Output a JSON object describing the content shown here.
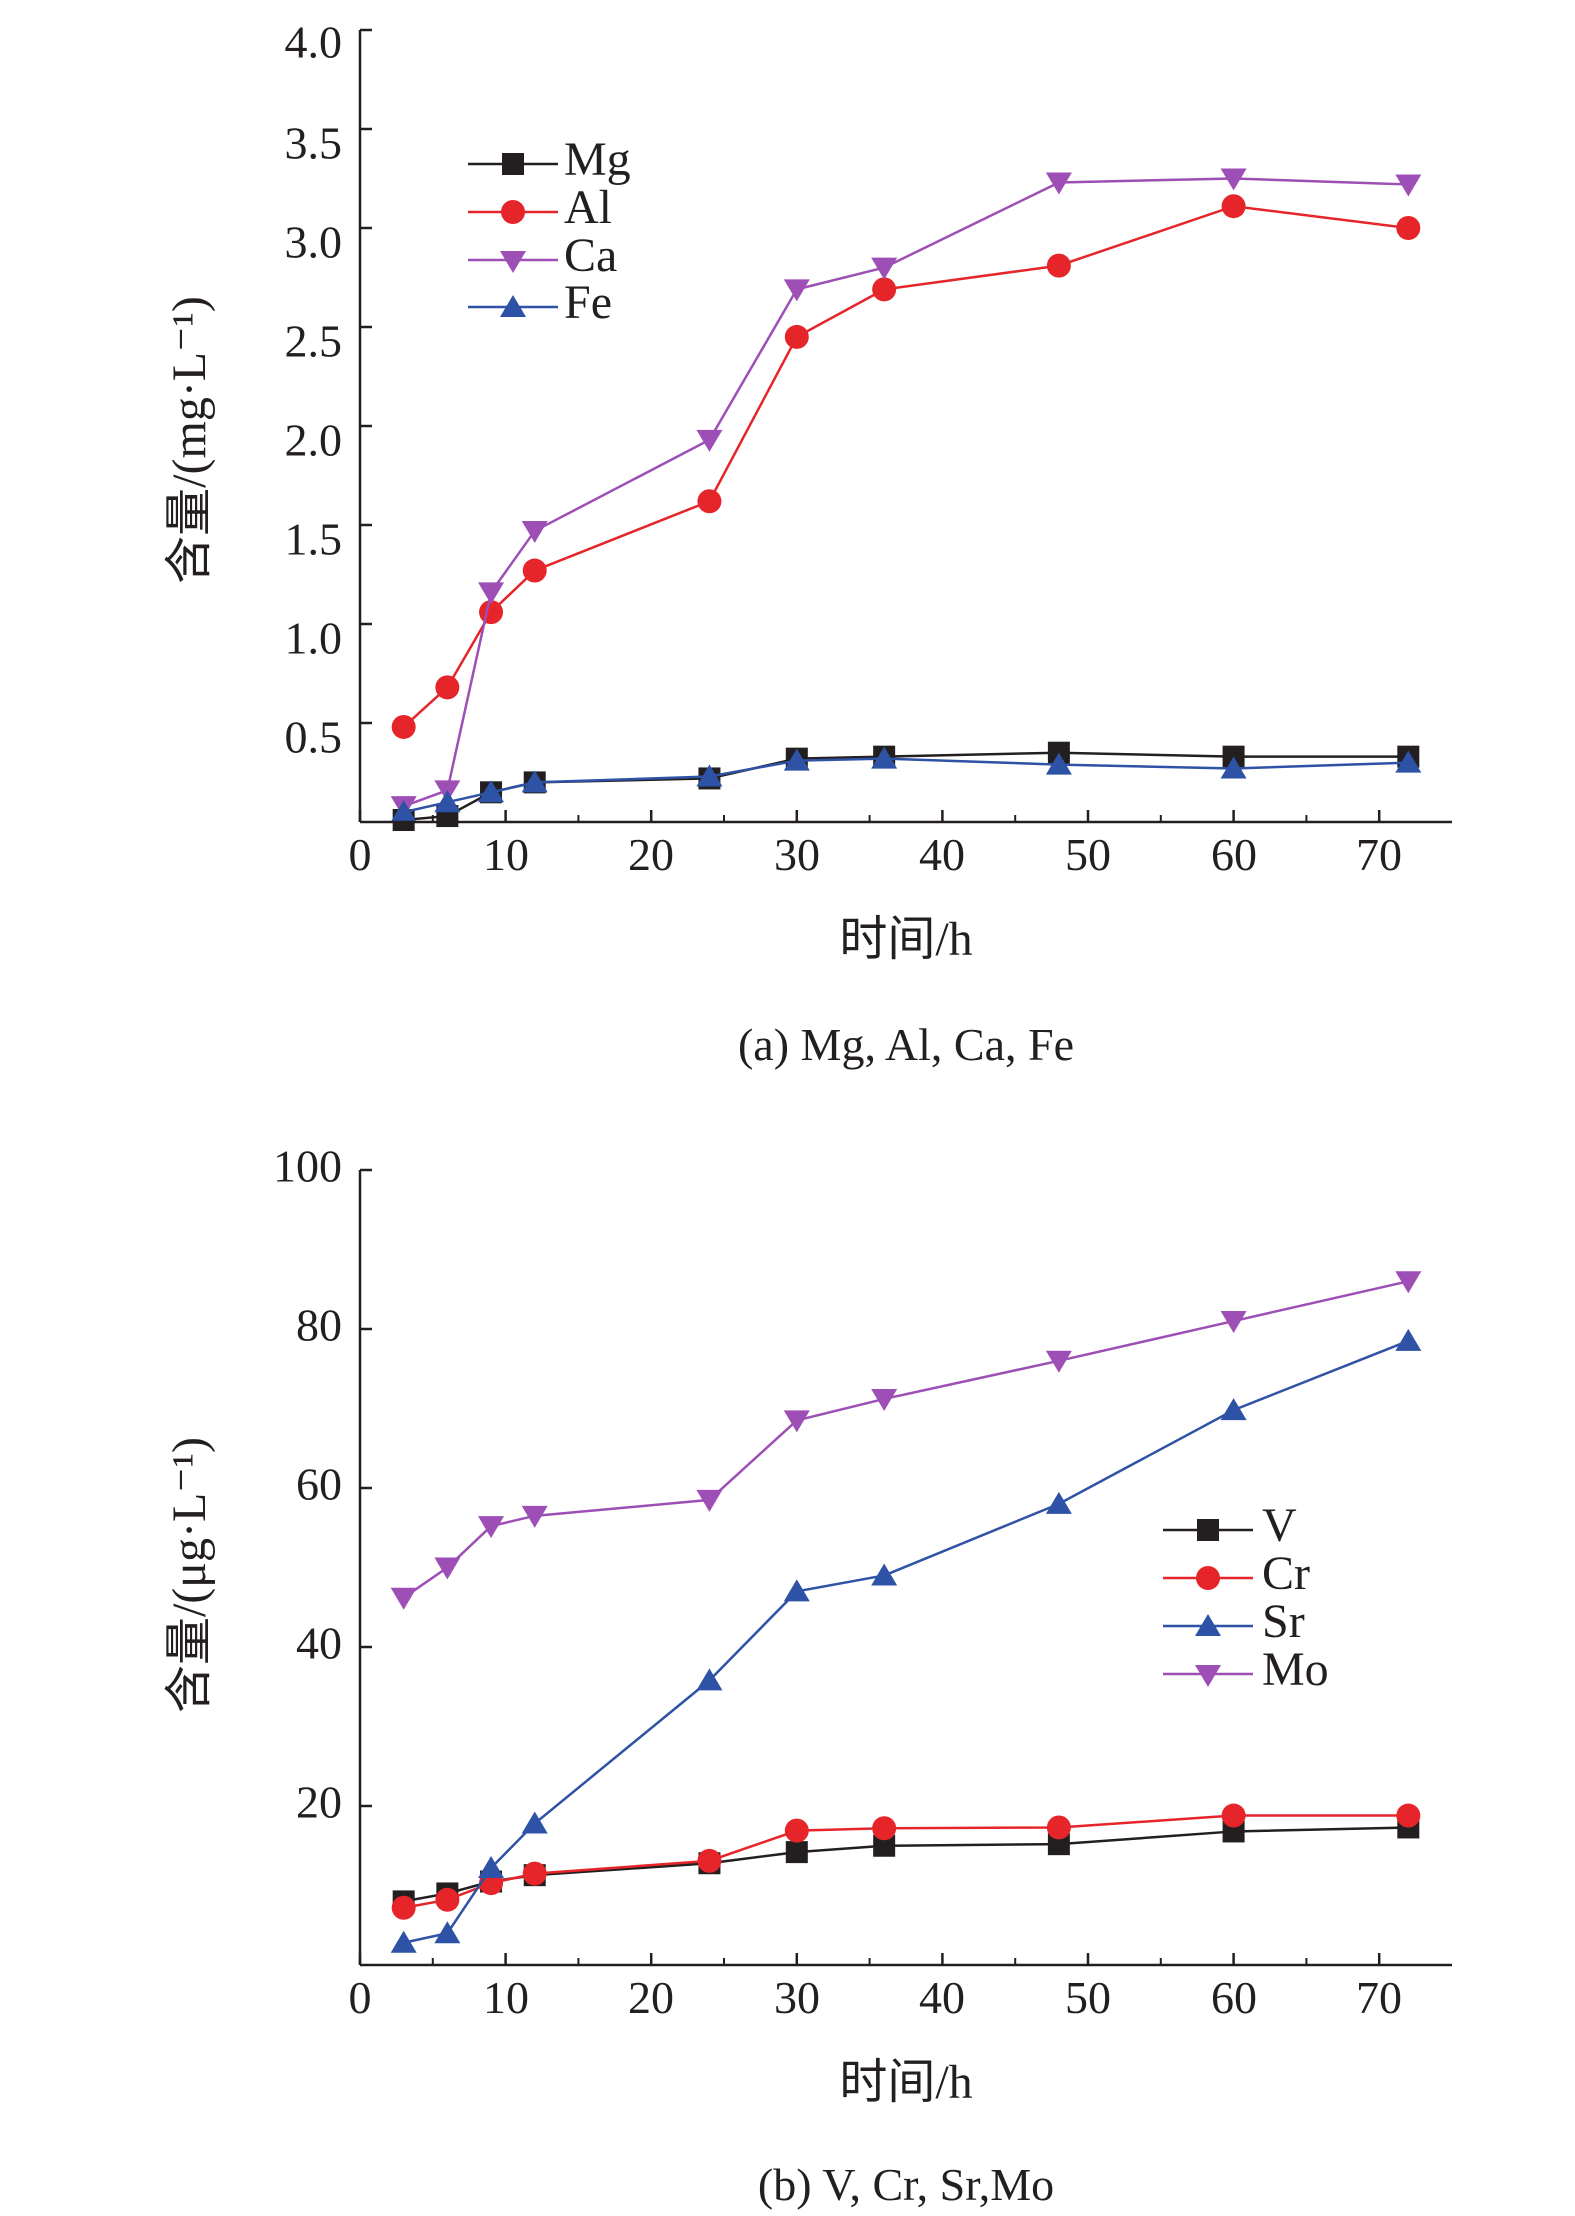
{
  "chart_data": [
    {
      "type": "line",
      "title": "",
      "caption": "(a) Mg, Al, Ca, Fe",
      "xlabel": "时间/h",
      "ylabel": "含量/(mg·L⁻¹)",
      "xlim": [
        0,
        75
      ],
      "ylim": [
        0,
        4
      ],
      "xticks": [
        0,
        10,
        20,
        30,
        40,
        50,
        60,
        70
      ],
      "xtick_labels": [
        "0",
        "10",
        "20",
        "30",
        "40",
        "50",
        "60",
        "70"
      ],
      "yticks": [
        0.5,
        1.0,
        1.5,
        2.0,
        2.5,
        3.0,
        3.5,
        4.0
      ],
      "ytick_labels": [
        "0.5",
        "1.0",
        "1.5",
        "2.0",
        "2.5",
        "3.0",
        "3.5",
        "4.0"
      ],
      "grid": false,
      "legend_position": "top-left",
      "x": [
        3,
        6,
        9,
        12,
        24,
        30,
        36,
        48,
        60,
        72
      ],
      "series": [
        {
          "name": "Mg",
          "color": "#231f20",
          "marker": "square",
          "values": [
            0.01,
            0.03,
            0.15,
            0.2,
            0.22,
            0.32,
            0.33,
            0.35,
            0.33,
            0.33
          ]
        },
        {
          "name": "Al",
          "color": "#e5252a",
          "marker": "circle",
          "values": [
            0.48,
            0.68,
            1.06,
            1.27,
            1.62,
            2.45,
            2.69,
            2.81,
            3.11,
            3.0
          ]
        },
        {
          "name": "Ca",
          "color": "#9d4fb6",
          "marker": "triangle-down",
          "values": [
            0.08,
            0.16,
            1.16,
            1.47,
            1.93,
            2.69,
            2.8,
            3.23,
            3.25,
            3.22
          ]
        },
        {
          "name": "Fe",
          "color": "#2e52a5",
          "marker": "triangle-up",
          "values": [
            0.05,
            0.1,
            0.15,
            0.2,
            0.23,
            0.31,
            0.32,
            0.29,
            0.27,
            0.3
          ]
        }
      ]
    },
    {
      "type": "line",
      "title": "",
      "caption": "(b) V, Cr, Sr,Mo",
      "xlabel": "时间/h",
      "ylabel": "含量/(μg·L⁻¹)",
      "xlim": [
        0,
        75
      ],
      "ylim": [
        0,
        100
      ],
      "xticks": [
        0,
        10,
        20,
        30,
        40,
        50,
        60,
        70
      ],
      "xtick_labels": [
        "0",
        "10",
        "20",
        "30",
        "40",
        "50",
        "60",
        "70"
      ],
      "yticks": [
        20,
        40,
        60,
        80,
        100
      ],
      "ytick_labels": [
        "20",
        "40",
        "60",
        "80",
        "100"
      ],
      "grid": false,
      "legend_position": "right",
      "x": [
        3,
        6,
        9,
        12,
        24,
        30,
        36,
        48,
        60,
        72
      ],
      "series": [
        {
          "name": "V",
          "color": "#231f20",
          "marker": "square",
          "values": [
            8.0,
            9.0,
            10.5,
            11.3,
            12.8,
            14.2,
            15.0,
            15.2,
            16.8,
            17.3
          ]
        },
        {
          "name": "Cr",
          "color": "#e5252a",
          "marker": "circle",
          "values": [
            7.2,
            8.2,
            10.3,
            11.5,
            13.1,
            16.9,
            17.2,
            17.3,
            18.8,
            18.8
          ]
        },
        {
          "name": "Sr",
          "color": "#2e52a5",
          "marker": "triangle-up",
          "values": [
            2.8,
            4.0,
            12.2,
            17.8,
            35.8,
            47.0,
            49.0,
            58.0,
            69.8,
            78.5
          ]
        },
        {
          "name": "Mo",
          "color": "#9d4fb6",
          "marker": "triangle-down",
          "values": [
            46.2,
            50.0,
            55.2,
            56.5,
            58.5,
            68.5,
            71.2,
            76.0,
            81.0,
            86.0
          ]
        }
      ]
    }
  ]
}
